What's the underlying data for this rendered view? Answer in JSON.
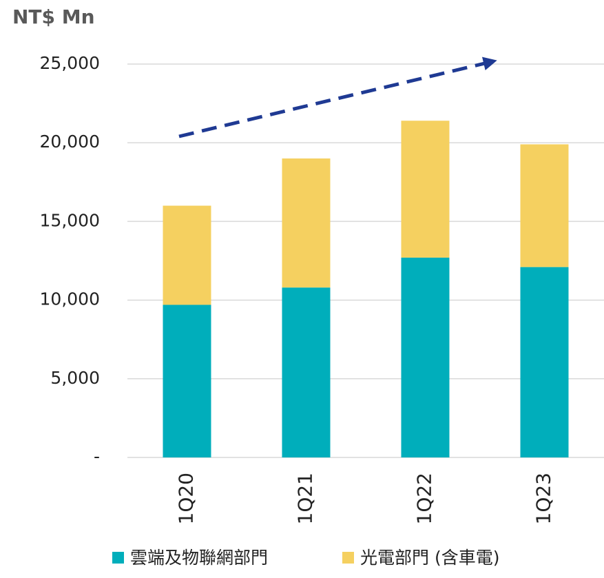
{
  "chart_data": {
    "type": "bar",
    "stacked": true,
    "y_axis_label": "NT$ Mn",
    "categories": [
      "1Q20",
      "1Q21",
      "1Q22",
      "1Q23"
    ],
    "series": [
      {
        "name": "雲端及物聯網部門",
        "color": "#00aebb",
        "values": [
          9700,
          10800,
          12700,
          12100
        ]
      },
      {
        "name": "光電部門 (含車電)",
        "color": "#f5d060",
        "values": [
          6300,
          8200,
          8700,
          7800
        ]
      }
    ],
    "ylim": [
      0,
      25000
    ],
    "yticks": [
      {
        "value": 0,
        "label": "-"
      },
      {
        "value": 5000,
        "label": "5,000"
      },
      {
        "value": 10000,
        "label": "10,000"
      },
      {
        "value": 15000,
        "label": "15,000"
      },
      {
        "value": 20000,
        "label": "20,000"
      },
      {
        "value": 25000,
        "label": "25,000"
      }
    ],
    "grid": true
  }
}
